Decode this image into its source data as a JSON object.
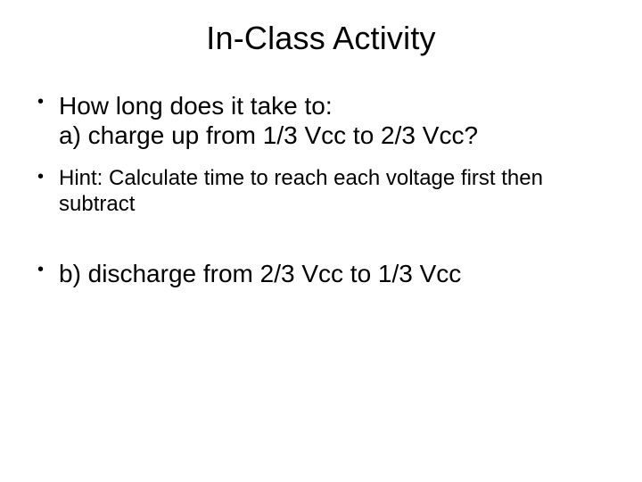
{
  "slide": {
    "title": "In-Class Activity",
    "bullets": {
      "b1_line1": "How long does it take to:",
      "b1_line2": "a) charge up from 1/3 Vcc to 2/3 Vcc?",
      "b2": "Hint: Calculate time to reach each voltage first then subtract",
      "b3": "b) discharge from 2/3 Vcc to 1/3 Vcc"
    }
  },
  "style": {
    "background_color": "#ffffff",
    "text_color": "#000000",
    "title_fontsize": 36,
    "bullet_large_fontsize": 28,
    "bullet_small_fontsize": 24,
    "font_family": "Arial"
  }
}
